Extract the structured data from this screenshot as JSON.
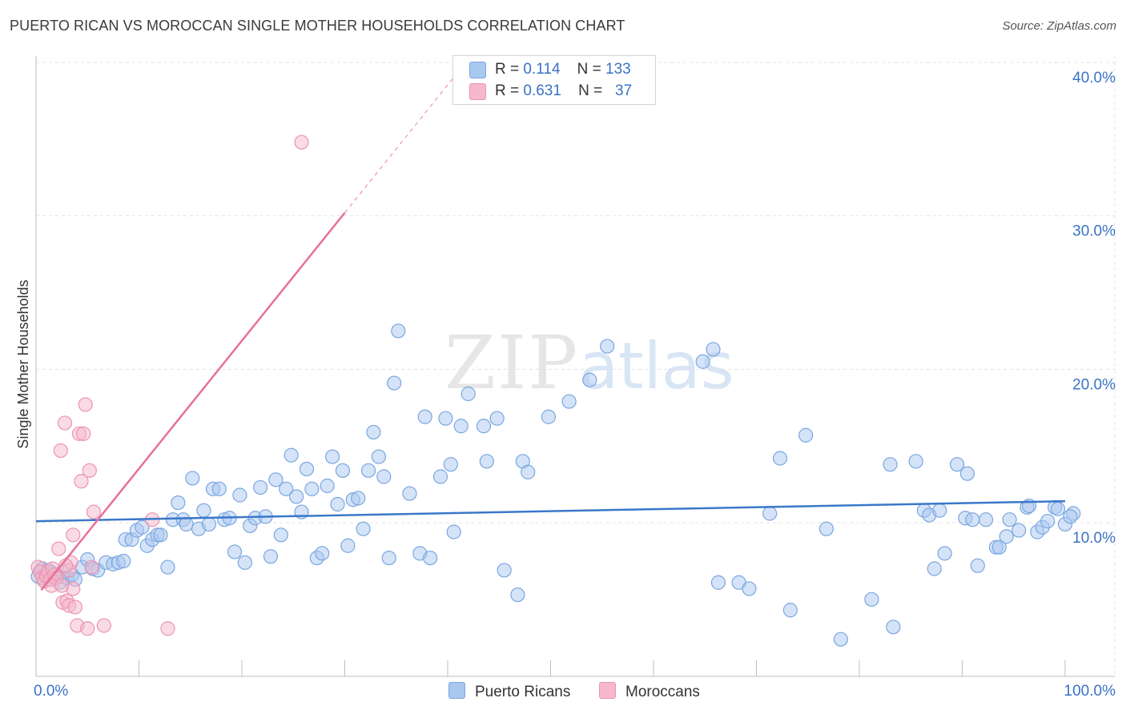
{
  "title": "PUERTO RICAN VS MOROCCAN SINGLE MOTHER HOUSEHOLDS CORRELATION CHART",
  "source": "Source: ZipAtlas.com",
  "watermark": {
    "zip": "ZIP",
    "atlas": "atlas"
  },
  "colors": {
    "blue_fill": "#a9c8f0",
    "blue_stroke": "#7aa6e0",
    "blue_line": "#3a78c9",
    "pink_fill": "#f6b8cb",
    "pink_stroke": "#ec93b0",
    "pink_line": "#e8709a",
    "grid": "#e3e3e3",
    "axis_text": "#3a72c4"
  },
  "legend": {
    "rows": [
      {
        "r_label": "R =",
        "r_value": "0.114",
        "n_label": "N =",
        "n_value": "133"
      },
      {
        "r_label": "R =",
        "r_value": "0.631",
        "n_label": "N =",
        "n_value": "37"
      }
    ]
  },
  "bottom_legend": {
    "series1": "Puerto Ricans",
    "series2": "Moroccans"
  },
  "chart_data": {
    "type": "scatter",
    "title": "PUERTO RICAN VS MOROCCAN SINGLE MOTHER HOUSEHOLDS CORRELATION CHART",
    "xlabel": "",
    "ylabel": "Single Mother Households",
    "xlim": [
      0,
      100
    ],
    "ylim": [
      0,
      42
    ],
    "x_tick_labels": {
      "min": "0.0%",
      "max": "100.0%"
    },
    "y_tick_labels": [
      "10.0%",
      "20.0%",
      "30.0%",
      "40.0%"
    ],
    "y_ticks": [
      10,
      20,
      30,
      40
    ],
    "series": [
      {
        "name": "Puerto Ricans",
        "r": 0.114,
        "n": 133,
        "trend": {
          "x": [
            0,
            100
          ],
          "y": [
            10.1,
            11.4
          ],
          "dashed_to": null
        },
        "points": [
          [
            0.2,
            6.5
          ],
          [
            0.4,
            6.8
          ],
          [
            0.6,
            7.0
          ],
          [
            0.8,
            6.2
          ],
          [
            1.0,
            6.6
          ],
          [
            1.2,
            6.9
          ],
          [
            1.4,
            6.3
          ],
          [
            1.6,
            6.7
          ],
          [
            1.8,
            6.4
          ],
          [
            2.0,
            6.5
          ],
          [
            2.3,
            6.1
          ],
          [
            2.6,
            6.8
          ],
          [
            3.0,
            6.4
          ],
          [
            3.5,
            6.6
          ],
          [
            3.8,
            6.3
          ],
          [
            4.5,
            7.1
          ],
          [
            5.0,
            7.6
          ],
          [
            5.5,
            7.0
          ],
          [
            6.0,
            6.9
          ],
          [
            6.8,
            7.4
          ],
          [
            7.5,
            7.3
          ],
          [
            8.0,
            7.4
          ],
          [
            8.5,
            7.5
          ],
          [
            8.7,
            8.9
          ],
          [
            9.3,
            8.9
          ],
          [
            9.8,
            9.5
          ],
          [
            10.3,
            9.7
          ],
          [
            10.8,
            8.5
          ],
          [
            11.3,
            8.9
          ],
          [
            11.8,
            9.2
          ],
          [
            12.1,
            9.2
          ],
          [
            12.8,
            7.1
          ],
          [
            13.3,
            10.2
          ],
          [
            13.8,
            11.3
          ],
          [
            14.3,
            10.2
          ],
          [
            14.6,
            9.9
          ],
          [
            15.2,
            12.9
          ],
          [
            15.8,
            9.6
          ],
          [
            16.3,
            10.8
          ],
          [
            16.8,
            9.9
          ],
          [
            17.2,
            12.2
          ],
          [
            17.8,
            12.2
          ],
          [
            18.3,
            10.2
          ],
          [
            18.8,
            10.3
          ],
          [
            19.3,
            8.1
          ],
          [
            19.8,
            11.8
          ],
          [
            20.3,
            7.4
          ],
          [
            20.8,
            9.8
          ],
          [
            21.3,
            10.3
          ],
          [
            21.8,
            12.3
          ],
          [
            22.3,
            10.4
          ],
          [
            22.8,
            7.8
          ],
          [
            23.3,
            12.8
          ],
          [
            23.8,
            9.2
          ],
          [
            24.3,
            12.2
          ],
          [
            24.8,
            14.4
          ],
          [
            25.3,
            11.7
          ],
          [
            25.8,
            10.7
          ],
          [
            26.3,
            13.5
          ],
          [
            26.8,
            12.2
          ],
          [
            27.3,
            7.7
          ],
          [
            27.8,
            8.0
          ],
          [
            28.3,
            12.4
          ],
          [
            28.8,
            14.3
          ],
          [
            29.3,
            11.2
          ],
          [
            29.8,
            13.4
          ],
          [
            30.3,
            8.5
          ],
          [
            30.8,
            11.5
          ],
          [
            31.3,
            11.6
          ],
          [
            31.8,
            9.6
          ],
          [
            32.3,
            13.4
          ],
          [
            32.8,
            15.9
          ],
          [
            33.3,
            14.3
          ],
          [
            33.8,
            13.0
          ],
          [
            34.3,
            7.7
          ],
          [
            34.8,
            19.1
          ],
          [
            35.2,
            22.5
          ],
          [
            36.3,
            11.9
          ],
          [
            37.3,
            8.0
          ],
          [
            37.8,
            16.9
          ],
          [
            38.3,
            7.7
          ],
          [
            39.3,
            13.0
          ],
          [
            39.8,
            16.8
          ],
          [
            40.3,
            13.8
          ],
          [
            40.6,
            9.4
          ],
          [
            41.3,
            16.3
          ],
          [
            42.0,
            18.4
          ],
          [
            43.5,
            16.3
          ],
          [
            43.8,
            14.0
          ],
          [
            44.8,
            16.8
          ],
          [
            45.5,
            6.9
          ],
          [
            46.8,
            5.3
          ],
          [
            47.3,
            14.0
          ],
          [
            47.8,
            13.3
          ],
          [
            49.8,
            16.9
          ],
          [
            51.8,
            17.9
          ],
          [
            53.8,
            19.3
          ],
          [
            55.5,
            21.5
          ],
          [
            64.8,
            20.5
          ],
          [
            65.8,
            21.3
          ],
          [
            66.3,
            6.1
          ],
          [
            68.3,
            6.1
          ],
          [
            69.3,
            5.7
          ],
          [
            71.3,
            10.6
          ],
          [
            72.3,
            14.2
          ],
          [
            73.3,
            4.3
          ],
          [
            74.8,
            15.7
          ],
          [
            76.8,
            9.6
          ],
          [
            78.2,
            2.4
          ],
          [
            81.2,
            5.0
          ],
          [
            83.0,
            13.8
          ],
          [
            83.3,
            3.2
          ],
          [
            85.5,
            14.0
          ],
          [
            86.3,
            10.8
          ],
          [
            86.8,
            10.5
          ],
          [
            87.3,
            7.0
          ],
          [
            87.8,
            10.8
          ],
          [
            88.3,
            8.0
          ],
          [
            89.5,
            13.8
          ],
          [
            90.3,
            10.3
          ],
          [
            90.5,
            13.2
          ],
          [
            91.0,
            10.2
          ],
          [
            91.5,
            7.2
          ],
          [
            92.3,
            10.2
          ],
          [
            93.3,
            8.4
          ],
          [
            93.6,
            8.4
          ],
          [
            94.3,
            9.1
          ],
          [
            94.6,
            10.2
          ],
          [
            95.5,
            9.5
          ],
          [
            96.3,
            11.0
          ],
          [
            96.5,
            11.1
          ],
          [
            97.3,
            9.4
          ],
          [
            97.8,
            9.7
          ],
          [
            98.3,
            10.1
          ],
          [
            99.0,
            11.0
          ],
          [
            99.3,
            10.9
          ],
          [
            100.0,
            9.9
          ],
          [
            100.8,
            10.6
          ],
          [
            100.5,
            10.4
          ]
        ]
      },
      {
        "name": "Moroccans",
        "r": 0.631,
        "n": 37,
        "trend": {
          "x": [
            0.5,
            30
          ],
          "y": [
            5.6,
            30.2
          ],
          "dashed_to": [
            42,
            40.2
          ]
        },
        "points": [
          [
            0.2,
            7.1
          ],
          [
            0.4,
            6.8
          ],
          [
            0.6,
            6.4
          ],
          [
            0.8,
            6.2
          ],
          [
            1.0,
            6.5
          ],
          [
            1.2,
            6.8
          ],
          [
            1.4,
            6.3
          ],
          [
            1.6,
            7.0
          ],
          [
            1.8,
            6.6
          ],
          [
            2.0,
            6.4
          ],
          [
            2.2,
            8.3
          ],
          [
            2.4,
            14.7
          ],
          [
            2.6,
            4.8
          ],
          [
            2.8,
            16.5
          ],
          [
            3.0,
            4.9
          ],
          [
            3.2,
            4.6
          ],
          [
            3.4,
            7.4
          ],
          [
            3.6,
            9.2
          ],
          [
            3.8,
            4.5
          ],
          [
            4.0,
            3.3
          ],
          [
            4.2,
            15.8
          ],
          [
            4.4,
            12.7
          ],
          [
            4.6,
            15.8
          ],
          [
            4.8,
            17.7
          ],
          [
            5.0,
            3.1
          ],
          [
            5.2,
            13.4
          ],
          [
            5.4,
            7.1
          ],
          [
            5.6,
            10.7
          ],
          [
            6.6,
            3.3
          ],
          [
            11.3,
            10.2
          ],
          [
            12.8,
            3.1
          ],
          [
            25.8,
            34.8
          ],
          [
            3.2,
            6.9
          ],
          [
            2.9,
            7.2
          ],
          [
            1.5,
            5.9
          ],
          [
            3.6,
            5.7
          ],
          [
            2.5,
            5.9
          ]
        ]
      }
    ]
  }
}
